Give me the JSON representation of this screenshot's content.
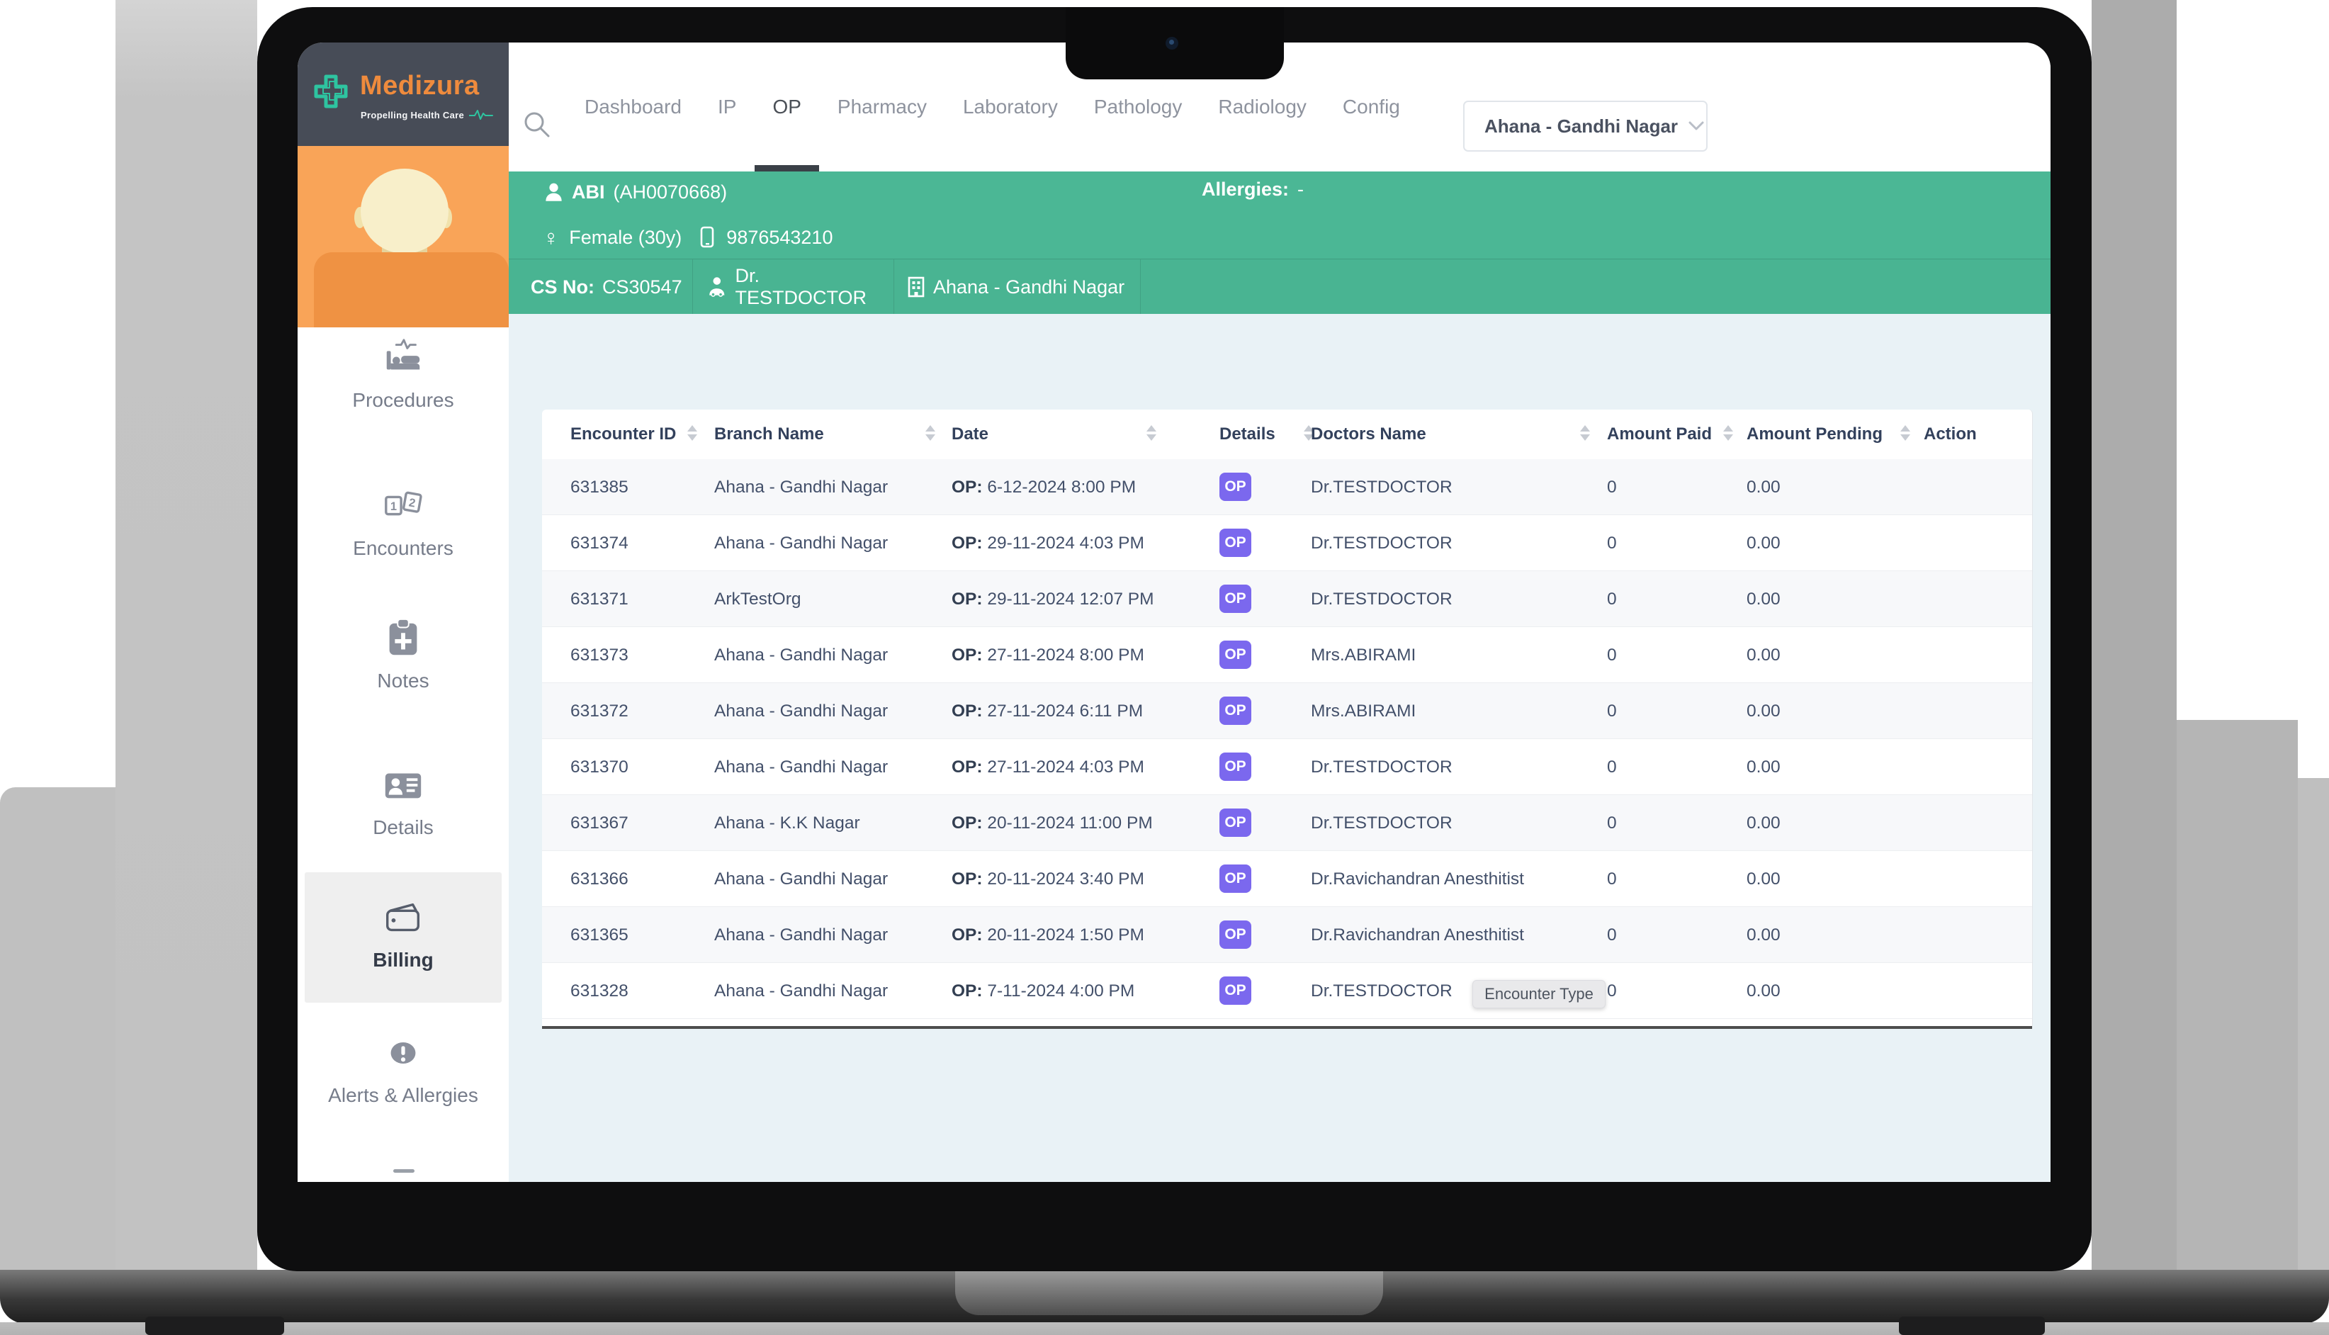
{
  "logo": {
    "name": "Medizura",
    "tagline": "Propelling Health Care"
  },
  "nav": {
    "items": [
      "Dashboard",
      "IP",
      "OP",
      "Pharmacy",
      "Laboratory",
      "Pathology",
      "Radiology",
      "Config"
    ],
    "active_item": "OP",
    "branch_dropdown": {
      "value": "Ahana - Gandhi Nagar"
    }
  },
  "patient_banner": {
    "name": "ABI",
    "mrn": "(AH0070668)",
    "gender_age": "Female (30y)",
    "female_symbol": "♀",
    "phone": "9876543210",
    "allergies_label": "Allergies:",
    "allergies_value": "-",
    "cs_label": "CS No:",
    "cs_value": "CS30547",
    "doctor": "Dr. TESTDOCTOR",
    "branch": "Ahana - Gandhi Nagar"
  },
  "sidebar": {
    "active_item": "Billing",
    "items": [
      {
        "label": "Procedures",
        "icon": "bed-icon"
      },
      {
        "label": "Encounters",
        "icon": "numbers-icon"
      },
      {
        "label": "Notes",
        "icon": "clipboard-plus-icon"
      },
      {
        "label": "Details",
        "icon": "id-card-icon"
      },
      {
        "label": "Billing",
        "icon": "wallet-icon"
      },
      {
        "label": "Alerts & Allergies",
        "icon": "alert-icon"
      }
    ]
  },
  "table": {
    "headers": [
      {
        "label": "Encounter ID",
        "sortable": true
      },
      {
        "label": "Branch Name",
        "sortable": true
      },
      {
        "label": "Date",
        "sortable": true
      },
      {
        "label": "Details",
        "sortable": true
      },
      {
        "label": "Doctors Name",
        "sortable": true
      },
      {
        "label": "Amount Paid",
        "sortable": true
      },
      {
        "label": "Amount Pending",
        "sortable": true
      },
      {
        "label": "Action",
        "sortable": false
      }
    ],
    "rows": [
      {
        "encounter_id": "631385",
        "branch": "Ahana - Gandhi Nagar",
        "date_prefix": "OP:",
        "date": "6-12-2024 8:00 PM",
        "details_badge": "OP",
        "doctor": "Dr.TESTDOCTOR",
        "amount_paid": "0",
        "amount_pending": "0.00"
      },
      {
        "encounter_id": "631374",
        "branch": "Ahana - Gandhi Nagar",
        "date_prefix": "OP:",
        "date": "29-11-2024 4:03 PM",
        "details_badge": "OP",
        "doctor": "Dr.TESTDOCTOR",
        "amount_paid": "0",
        "amount_pending": "0.00"
      },
      {
        "encounter_id": "631371",
        "branch": "ArkTestOrg",
        "date_prefix": "OP:",
        "date": "29-11-2024 12:07 PM",
        "details_badge": "OP",
        "doctor": "Dr.TESTDOCTOR",
        "amount_paid": "0",
        "amount_pending": "0.00"
      },
      {
        "encounter_id": "631373",
        "branch": "Ahana - Gandhi Nagar",
        "date_prefix": "OP:",
        "date": "27-11-2024 8:00 PM",
        "details_badge": "OP",
        "doctor": "Mrs.ABIRAMI",
        "amount_paid": "0",
        "amount_pending": "0.00"
      },
      {
        "encounter_id": "631372",
        "branch": "Ahana - Gandhi Nagar",
        "date_prefix": "OP:",
        "date": "27-11-2024 6:11 PM",
        "details_badge": "OP",
        "doctor": "Mrs.ABIRAMI",
        "amount_paid": "0",
        "amount_pending": "0.00"
      },
      {
        "encounter_id": "631370",
        "branch": "Ahana - Gandhi Nagar",
        "date_prefix": "OP:",
        "date": "27-11-2024 4:03 PM",
        "details_badge": "OP",
        "doctor": "Dr.TESTDOCTOR",
        "amount_paid": "0",
        "amount_pending": "0.00"
      },
      {
        "encounter_id": "631367",
        "branch": "Ahana - K.K Nagar",
        "date_prefix": "OP:",
        "date": "20-11-2024 11:00 PM",
        "details_badge": "OP",
        "doctor": "Dr.TESTDOCTOR",
        "amount_paid": "0",
        "amount_pending": "0.00"
      },
      {
        "encounter_id": "631366",
        "branch": "Ahana - Gandhi Nagar",
        "date_prefix": "OP:",
        "date": "20-11-2024 3:40 PM",
        "details_badge": "OP",
        "doctor": "Dr.Ravichandran Anesthitist",
        "amount_paid": "0",
        "amount_pending": "0.00"
      },
      {
        "encounter_id": "631365",
        "branch": "Ahana - Gandhi Nagar",
        "date_prefix": "OP:",
        "date": "20-11-2024 1:50 PM",
        "details_badge": "OP",
        "doctor": "Dr.Ravichandran Anesthitist",
        "amount_paid": "0",
        "amount_pending": "0.00"
      },
      {
        "encounter_id": "631328",
        "branch": "Ahana - Gandhi Nagar",
        "date_prefix": "OP:",
        "date": "7-11-2024 4:00 PM",
        "details_badge": "OP",
        "doctor": "Dr.TESTDOCTOR",
        "amount_paid": "0",
        "amount_pending": "0.00"
      }
    ]
  },
  "tooltip": {
    "text": "Encounter Type"
  },
  "colors": {
    "banner_green": "#4bb795",
    "badge_purple": "#7b68ee",
    "logo_orange": "#ef8b3d",
    "logo_teal": "#2ec4a0",
    "sidebar_dark": "#474c57",
    "avatar_orange": "#f9a458",
    "content_bg": "#e9f2f6"
  }
}
